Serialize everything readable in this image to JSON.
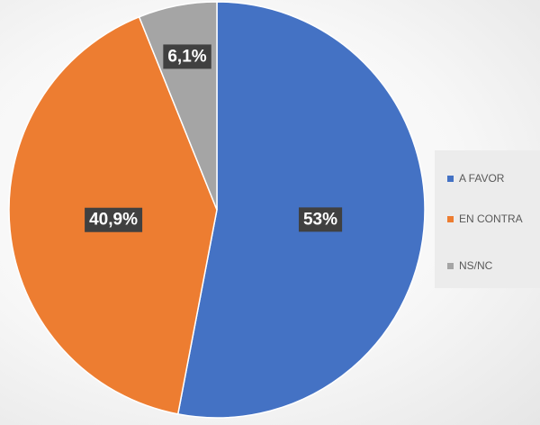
{
  "chart_data": {
    "type": "pie",
    "categories": [
      "A FAVOR",
      "EN CONTRA",
      "NS/NC"
    ],
    "values": [
      53,
      40.9,
      6.1
    ],
    "data_labels": [
      "53%",
      "40,9%",
      "6,1%"
    ],
    "colors": [
      "#4472c4",
      "#ed7d31",
      "#a5a5a5"
    ],
    "start_angle_deg": 0,
    "direction": "clockwise",
    "legend_position": "right"
  }
}
